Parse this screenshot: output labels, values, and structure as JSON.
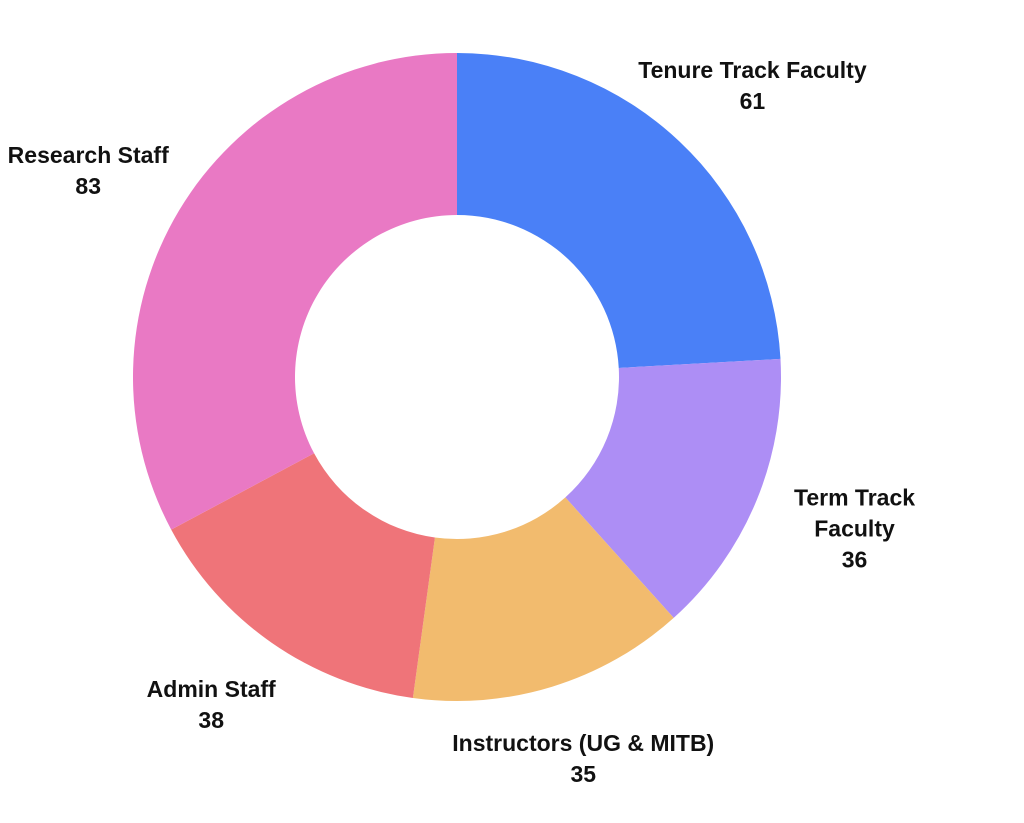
{
  "chart_data": {
    "type": "donut",
    "categories": [
      "Tenure Track Faculty",
      "Term Track Faculty",
      "Instructors (UG & MITB)",
      "Admin Staff",
      "Research Staff"
    ],
    "values": [
      61,
      36,
      35,
      38,
      83
    ],
    "colors": [
      "#4a80f7",
      "#ad8ef5",
      "#f2bb6e",
      "#ef7479",
      "#e979c4"
    ]
  }
}
